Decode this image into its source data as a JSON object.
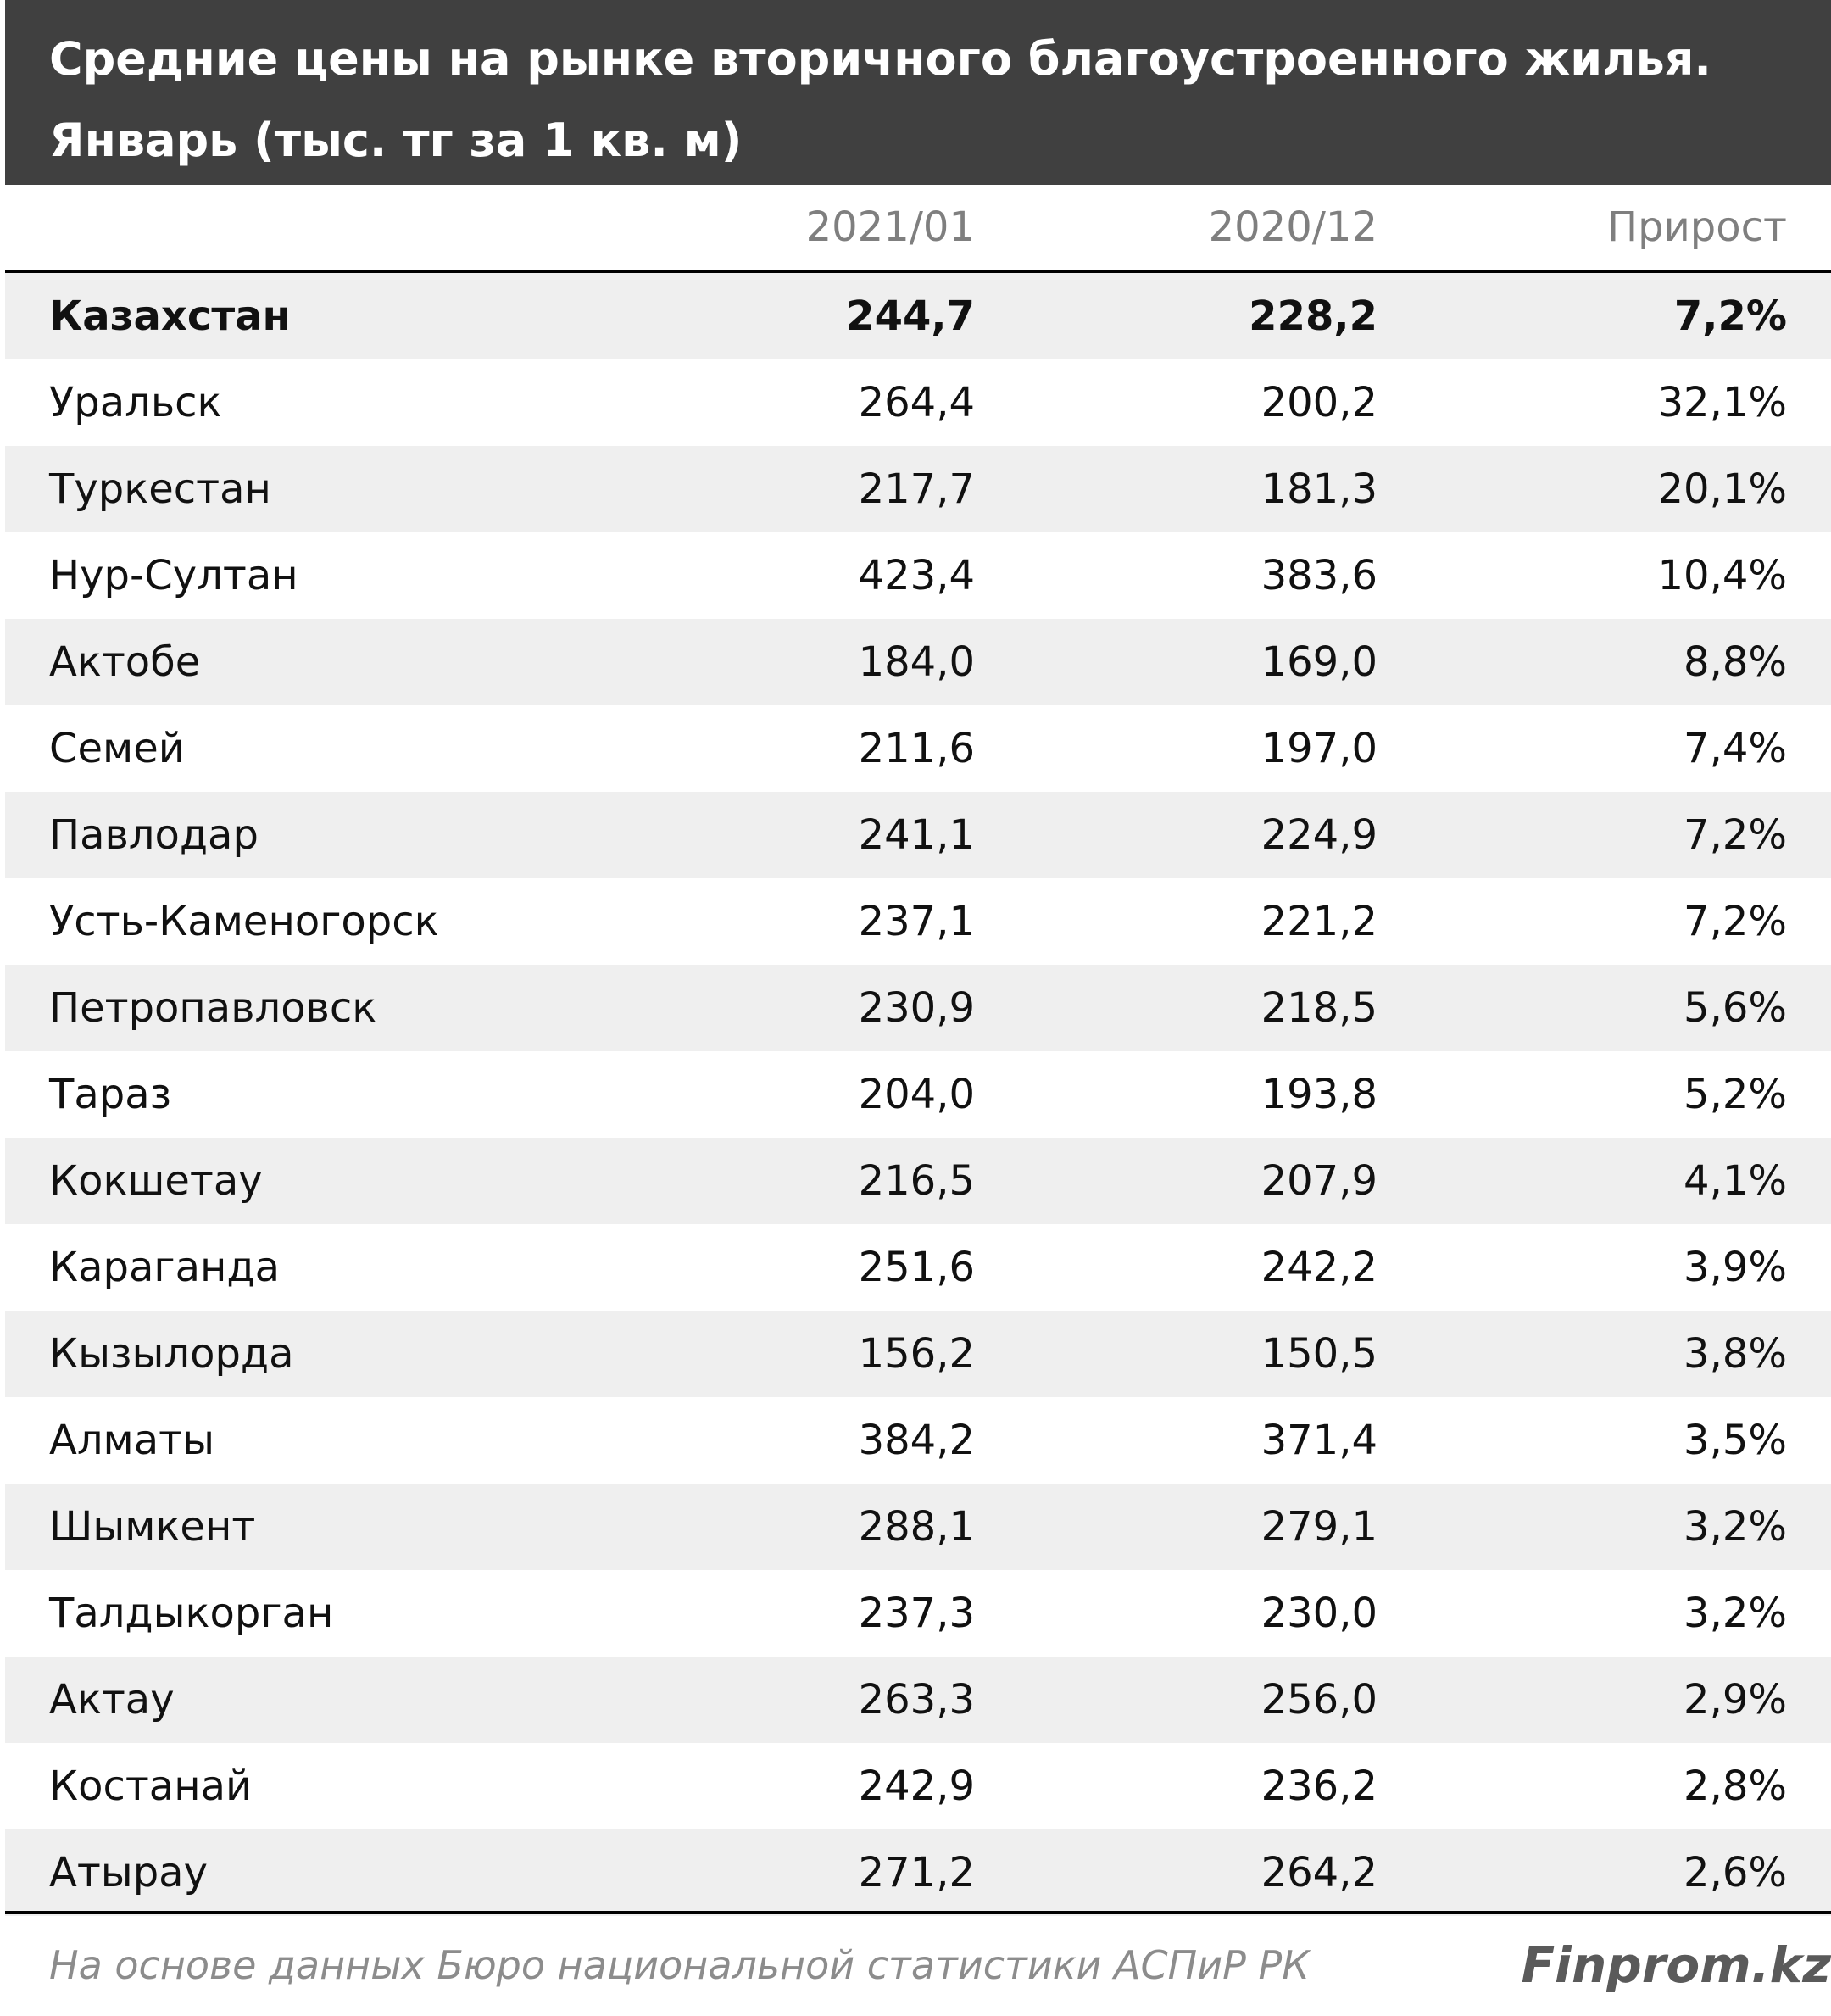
{
  "chart_data": {
    "type": "table",
    "title": "Средние цены на рынке вторичного благоустроенного жилья. Январь (тыс. тг за 1 кв. м)",
    "title_lines": [
      "Средние цены на рынке вторичного благоустроенного жилья.",
      "Январь (тыс. тг за 1 кв. м)"
    ],
    "columns": [
      "",
      "2021/01",
      "2020/12",
      "Прирост"
    ],
    "rows": [
      {
        "name": "Казахстан",
        "v2021_01": "244,7",
        "v2020_12": "228,2",
        "growth": "7,2%",
        "bold": true
      },
      {
        "name": "Уральск",
        "v2021_01": "264,4",
        "v2020_12": "200,2",
        "growth": "32,1%"
      },
      {
        "name": "Туркестан",
        "v2021_01": "217,7",
        "v2020_12": "181,3",
        "growth": "20,1%"
      },
      {
        "name": "Нур-Султан",
        "v2021_01": "423,4",
        "v2020_12": "383,6",
        "growth": "10,4%"
      },
      {
        "name": "Актобе",
        "v2021_01": "184,0",
        "v2020_12": "169,0",
        "growth": "8,8%"
      },
      {
        "name": "Семей",
        "v2021_01": "211,6",
        "v2020_12": "197,0",
        "growth": "7,4%"
      },
      {
        "name": "Павлодар",
        "v2021_01": "241,1",
        "v2020_12": "224,9",
        "growth": "7,2%"
      },
      {
        "name": "Усть-Каменогорск",
        "v2021_01": "237,1",
        "v2020_12": "221,2",
        "growth": "7,2%"
      },
      {
        "name": "Петропавловск",
        "v2021_01": "230,9",
        "v2020_12": "218,5",
        "growth": "5,6%"
      },
      {
        "name": "Тараз",
        "v2021_01": "204,0",
        "v2020_12": "193,8",
        "growth": "5,2%"
      },
      {
        "name": "Кокшетау",
        "v2021_01": "216,5",
        "v2020_12": "207,9",
        "growth": "4,1%"
      },
      {
        "name": "Караганда",
        "v2021_01": "251,6",
        "v2020_12": "242,2",
        "growth": "3,9%"
      },
      {
        "name": "Кызылорда",
        "v2021_01": "156,2",
        "v2020_12": "150,5",
        "growth": "3,8%"
      },
      {
        "name": "Алматы",
        "v2021_01": "384,2",
        "v2020_12": "371,4",
        "growth": "3,5%"
      },
      {
        "name": "Шымкент",
        "v2021_01": "288,1",
        "v2020_12": "279,1",
        "growth": "3,2%"
      },
      {
        "name": "Талдыкорган",
        "v2021_01": "237,3",
        "v2020_12": "230,0",
        "growth": "3,2%"
      },
      {
        "name": "Актау",
        "v2021_01": "263,3",
        "v2020_12": "256,0",
        "growth": "2,9%"
      },
      {
        "name": "Костанай",
        "v2021_01": "242,9",
        "v2020_12": "236,2",
        "growth": "2,8%"
      },
      {
        "name": "Атырау",
        "v2021_01": "271,2",
        "v2020_12": "264,2",
        "growth": "2,6%"
      }
    ],
    "source": "На основе данных Бюро национальной статистики АСПиР РК",
    "brand": "Finprom.kz"
  }
}
